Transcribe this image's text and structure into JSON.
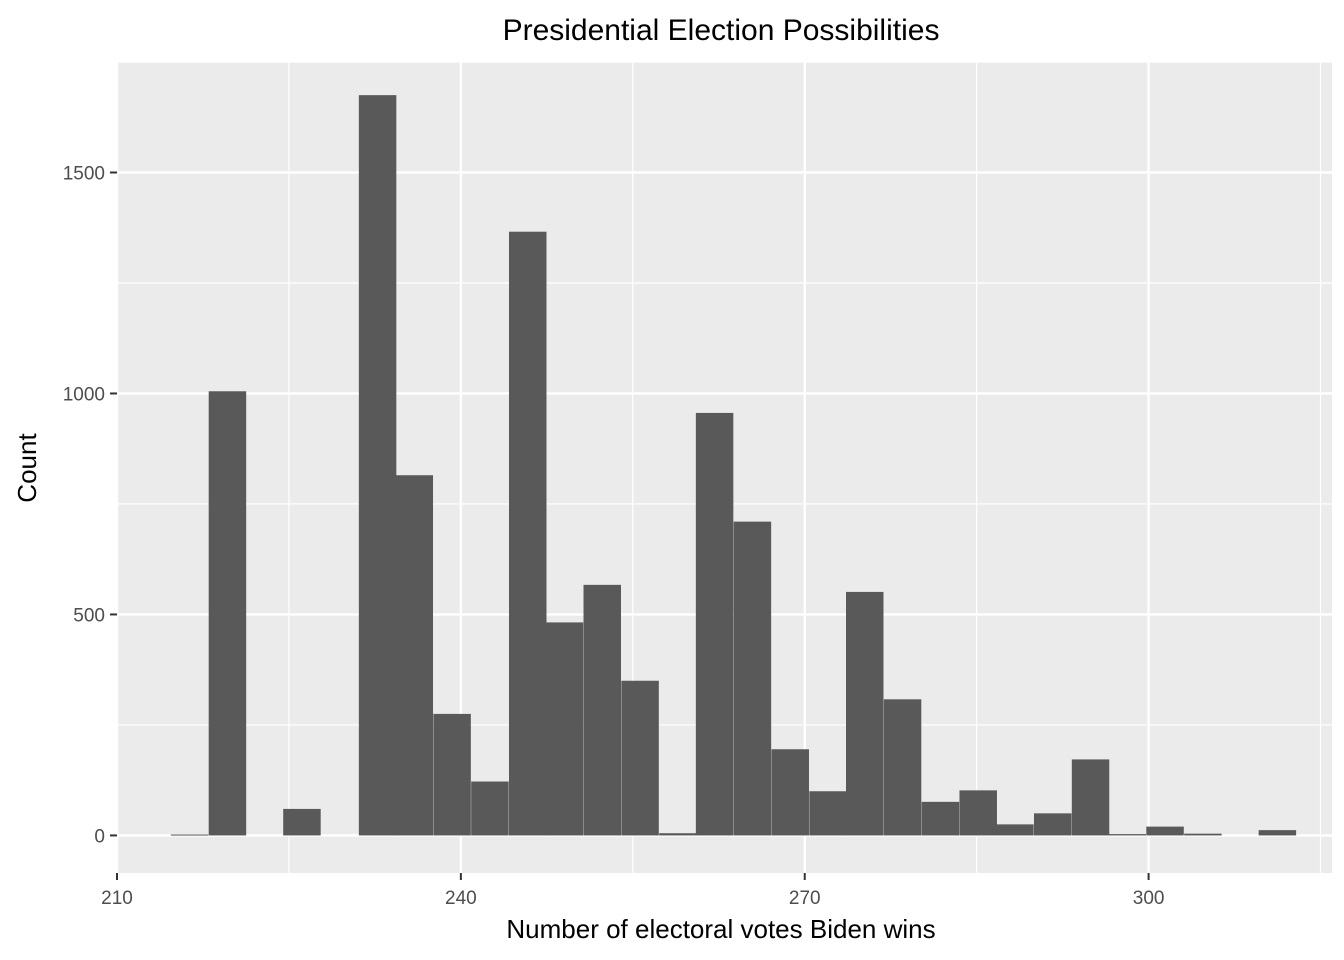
{
  "chart_data": {
    "type": "bar",
    "title": "Presidential Election Possibilities",
    "xlabel": "Number of electoral votes Biden wins",
    "ylabel": "Count",
    "xlim": [
      210,
      316
    ],
    "ylim": [
      -85,
      1750
    ],
    "x_ticks": [
      210,
      240,
      270,
      300
    ],
    "x_tick_labels": [
      "210",
      "240",
      "270",
      "300"
    ],
    "y_ticks": [
      0,
      500,
      1000,
      1500
    ],
    "y_tick_labels": [
      "0",
      "500",
      "1000",
      "1500"
    ],
    "bin_width": 3.27,
    "bins": [
      {
        "start": 214.7,
        "count": 2
      },
      {
        "start": 218.0,
        "count": 1005
      },
      {
        "start": 224.5,
        "count": 60
      },
      {
        "start": 231.1,
        "count": 1675
      },
      {
        "start": 234.3,
        "count": 815
      },
      {
        "start": 237.6,
        "count": 275
      },
      {
        "start": 240.9,
        "count": 122
      },
      {
        "start": 244.2,
        "count": 1366
      },
      {
        "start": 247.4,
        "count": 482
      },
      {
        "start": 250.7,
        "count": 567
      },
      {
        "start": 254.0,
        "count": 350
      },
      {
        "start": 257.3,
        "count": 5
      },
      {
        "start": 260.5,
        "count": 956
      },
      {
        "start": 263.8,
        "count": 710
      },
      {
        "start": 267.1,
        "count": 195
      },
      {
        "start": 270.4,
        "count": 100
      },
      {
        "start": 273.6,
        "count": 551
      },
      {
        "start": 276.9,
        "count": 308
      },
      {
        "start": 280.2,
        "count": 76
      },
      {
        "start": 283.5,
        "count": 102
      },
      {
        "start": 286.7,
        "count": 25
      },
      {
        "start": 290.0,
        "count": 50
      },
      {
        "start": 293.3,
        "count": 172
      },
      {
        "start": 296.5,
        "count": 3
      },
      {
        "start": 299.8,
        "count": 20
      },
      {
        "start": 303.1,
        "count": 4
      },
      {
        "start": 309.6,
        "count": 12
      }
    ],
    "grid": true,
    "bar_color": "#595959",
    "panel_color": "#ebebeb",
    "grid_color": "#ffffff"
  }
}
